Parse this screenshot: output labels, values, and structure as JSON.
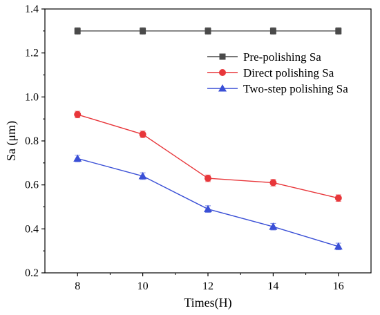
{
  "chart_data": {
    "type": "line",
    "xlabel": "Times(H)",
    "ylabel": "Sa (μm)",
    "xlim": [
      7,
      17
    ],
    "ylim": [
      0.2,
      1.4
    ],
    "x": [
      8,
      10,
      12,
      14,
      16
    ],
    "xticks": [
      "8",
      "10",
      "12",
      "14",
      "16"
    ],
    "yticks": [
      "0.2",
      "0.4",
      "0.6",
      "0.8",
      "1.0",
      "1.2",
      "1.4"
    ],
    "legend_position": "top-right",
    "series": [
      {
        "name": "Pre-polishing Sa",
        "color": "#4a4a4a",
        "marker": "square",
        "values": [
          1.3,
          1.3,
          1.3,
          1.3,
          1.3
        ],
        "error": [
          0.015,
          0.015,
          0.015,
          0.015,
          0.015
        ]
      },
      {
        "name": "Direct polishing Sa",
        "color": "#e8363a",
        "marker": "circle",
        "values": [
          0.92,
          0.83,
          0.63,
          0.61,
          0.54
        ],
        "error": [
          0.015,
          0.015,
          0.015,
          0.015,
          0.015
        ]
      },
      {
        "name": "Two-step polishing Sa",
        "color": "#3a4fd6",
        "marker": "triangle",
        "values": [
          0.72,
          0.64,
          0.49,
          0.41,
          0.32
        ],
        "error": [
          0.015,
          0.015,
          0.015,
          0.015,
          0.015
        ]
      }
    ]
  }
}
